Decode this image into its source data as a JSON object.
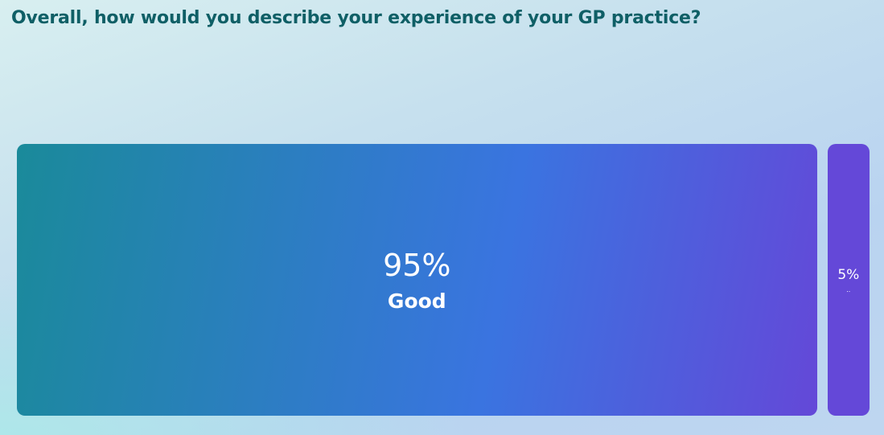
{
  "title": "Overall, how would you describe your experience of your GP practice?",
  "chart_data": {
    "type": "bar",
    "orientation": "horizontal-stacked",
    "title": "Overall, how would you describe your experience of your GP practice?",
    "categories": [
      "Good",
      ".."
    ],
    "values": [
      95,
      5
    ],
    "value_labels": [
      "95%",
      "5%"
    ],
    "unit": "%",
    "colors": {
      "gradient_start": "#1a8a9a",
      "gradient_mid": "#3a74e0",
      "gradient_end": "#6448d8"
    }
  }
}
